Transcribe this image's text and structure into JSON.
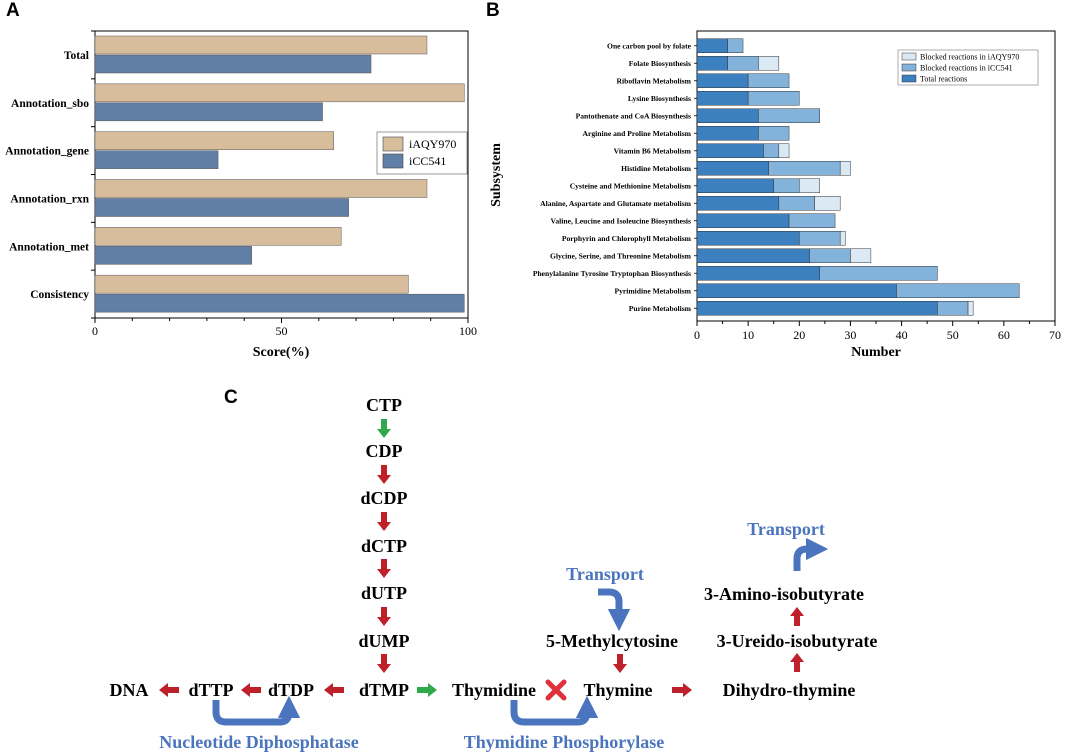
{
  "panel_labels": {
    "a": "A",
    "b": "B",
    "c": "C"
  },
  "colors": {
    "iAQY970": "#d8bd9d",
    "iCC541": "#617ea6",
    "total": "#3d80c0",
    "blocked_icc541": "#83b3da",
    "blocked_iaqy970": "#dbe9f5",
    "arrow_red": "#c0202a",
    "arrow_green": "#2eaa4a",
    "enzyme_blue": "#4a74bd",
    "cross_red": "#e0303a"
  },
  "chart_data": [
    {
      "id": "A",
      "type": "bar",
      "orientation": "horizontal",
      "categories": [
        "Total",
        "Annotation_sbo",
        "Annotation_gene",
        "Annotation_rxn",
        "Annotation_met",
        "Consistency"
      ],
      "series": [
        {
          "name": "iAQY970",
          "values": [
            89,
            99,
            64,
            89,
            66,
            84
          ]
        },
        {
          "name": "iCC541",
          "values": [
            74,
            61,
            33,
            68,
            42,
            99
          ]
        }
      ],
      "xlabel": "Score(%)",
      "ylabel": "",
      "xlim": [
        0,
        100
      ],
      "xticks": [
        0,
        50,
        100
      ],
      "legend": "center-right"
    },
    {
      "id": "B",
      "type": "bar",
      "orientation": "horizontal",
      "stacked": true,
      "categories": [
        "One carbon pool by folate",
        "Folate Biosynthesis",
        "Riboflavin Metabolism",
        "Lysine Biosynthesis",
        "Pantothenate and CoA Biosynthesis",
        "Arginine and Proline Metabolism",
        "Vitamin B6 Metabolism",
        "Histidine Metabolism",
        "Cysteine and Methionine Metabolism",
        "Alanine, Aspartate and Glutamate metabolism",
        "Valine, Leucine and Isoleucine Biosynthesis",
        "Porphyrin and Chlorophyll Metabolism",
        "Glycine, Serine, and Threonine Metabolism",
        "Phenylalanine Tyrosine Tryptophan Biosynthesis",
        "Pyrimidine Metabolism",
        "Purine Metabolism"
      ],
      "series": [
        {
          "name": "Total reactions",
          "values": [
            6,
            6,
            10,
            10,
            12,
            12,
            13,
            14,
            15,
            16,
            18,
            20,
            22,
            24,
            39,
            47
          ]
        },
        {
          "name": "Blocked reactions in iCC541",
          "values": [
            3,
            6,
            8,
            10,
            12,
            6,
            3,
            14,
            5,
            7,
            9,
            8,
            8,
            23,
            24,
            6
          ]
        },
        {
          "name": "Blocked reactions in iAQY970",
          "values": [
            0,
            4,
            0,
            0,
            0,
            0,
            2,
            2,
            4,
            5,
            0,
            1,
            4,
            0,
            0,
            1
          ]
        }
      ],
      "xlabel": "Number",
      "ylabel": "Subsystem",
      "xlim": [
        0,
        70
      ],
      "xticks": [
        0,
        10,
        20,
        30,
        40,
        50,
        60,
        70
      ],
      "legend": "top-right"
    }
  ],
  "pathway": {
    "nodes": {
      "ctp": "CTP",
      "cdp": "CDP",
      "dcdp": "dCDP",
      "dctp": "dCTP",
      "dutp": "dUTP",
      "dump": "dUMP",
      "dtmp": "dTMP",
      "dtdp": "dTDP",
      "dttp": "dTTP",
      "dna": "DNA",
      "thymidine": "Thymidine",
      "thymine": "Thymine",
      "methylcytosine": "5-Methylcytosine",
      "dihydrothymine": "Dihydro-thymine",
      "ureido": "3-Ureido-isobutyrate",
      "amino": "3-Amino-isobutyrate"
    },
    "enzymes": {
      "nucleotide": "Nucleotide Diphosphatase",
      "phosphorylase": "Thymidine Phosphorylase",
      "transport1": "Transport",
      "transport2": "Transport"
    }
  }
}
